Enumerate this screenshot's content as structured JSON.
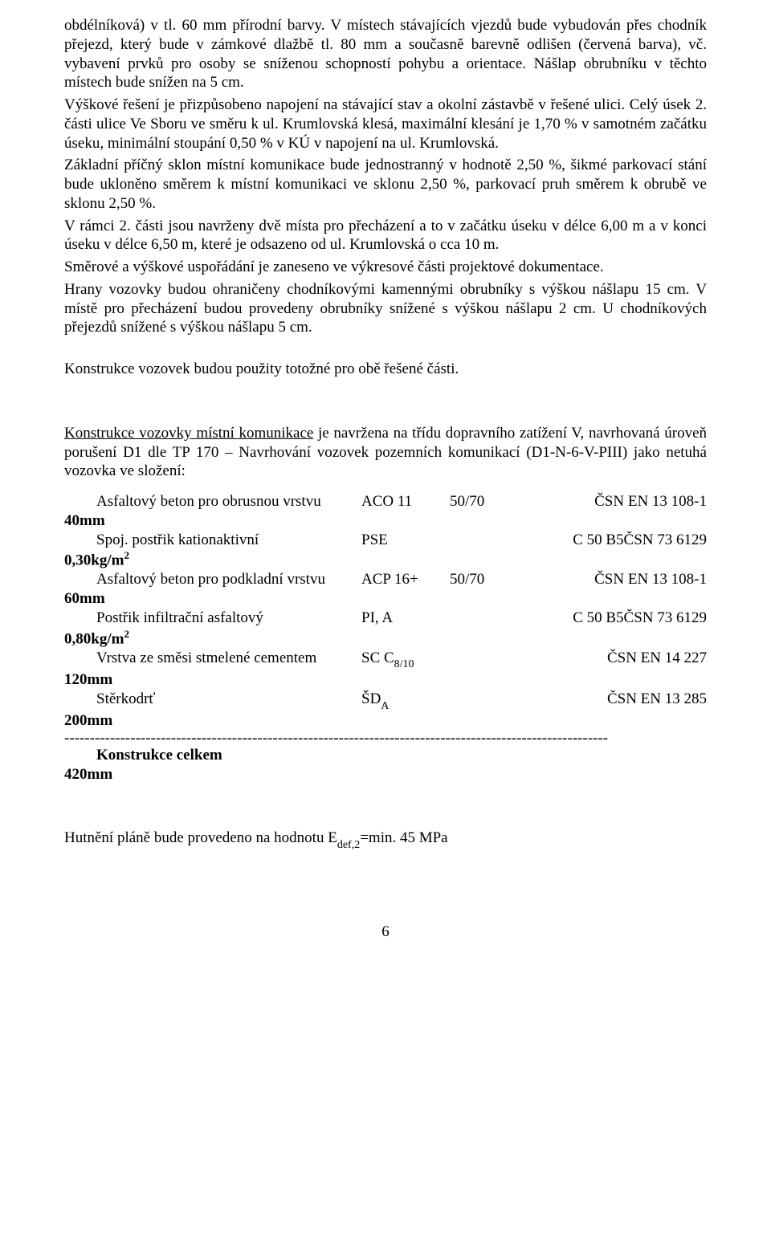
{
  "body": {
    "p1": "obdélníková) v tl. 60 mm přírodní barvy. V místech stávajících vjezdů bude vybudován přes chodník přejezd, který bude v zámkové dlažbě tl. 80 mm a současně barevně odlišen (červená barva), vč. vybavení prvků pro osoby se sníženou schopností pohybu a orientace. Nášlap obrubníku v těchto místech bude snížen na 5 cm.",
    "p2": "Výškové řešení je přizpůsobeno napojení na stávající stav a okolní zástavbě v řešené ulici. Celý úsek 2. části ulice Ve Sboru ve směru k ul. Krumlovská klesá, maximální klesání je 1,70 % v samotném začátku úseku, minimální stoupání 0,50 % v KÚ v napojení na ul. Krumlovská.",
    "p3": "Základní příčný sklon místní komunikace bude jednostranný v hodnotě 2,50 %, šikmé parkovací stání bude ukloněno směrem k místní komunikaci ve sklonu 2,50 %, parkovací pruh směrem k obrubě ve sklonu 2,50 %.",
    "p4": "V rámci 2. části jsou navrženy dvě místa pro přecházení a to v začátku úseku v délce 6,00 m a v konci úseku v délce 6,50 m, které je odsazeno od ul. Krumlovská o cca 10 m.",
    "p5": "Směrové a výškové uspořádání je zaneseno ve výkresové části projektové dokumentace.",
    "p6": "Hrany vozovky budou ohraničeny chodníkovými kamennými obrubníky s výškou nášlapu 15 cm. V místě pro přecházení budou provedeny obrubníky snížené s výškou nášlapu 2 cm. U chodníkových přejezdů snížené s výškou nášlapu 5 cm.",
    "p7": "Konstrukce vozovek budou použity totožné pro obě řešené části.",
    "p8_u": "Konstrukce vozovky místní komunikace",
    "p8_rest": " je navržena na třídu dopravního zatížení V, navrhovaná úroveň porušení D1 dle TP 170 – Navrhování vozovek pozemních komunikací (D1-N-6-V-PIII) jako netuhá vozovka ve složení:",
    "total_label": "Konstrukce celkem",
    "total_thick": "420mm",
    "footer_pre": "Hutnění pláně bude provedeno na hodnotu E",
    "footer_sub": "def,2",
    "footer_post": "=min. 45 MPa",
    "sep": "-----------------------------------------------------------------------------------------------------------"
  },
  "layers": [
    {
      "name": "Asfaltový beton pro obrusnou vrstvu",
      "code": "ACO 11",
      "spec": "50/70",
      "std": "ČSN EN 13 108-1",
      "thick": "40mm"
    },
    {
      "name": "Spoj. postřik kationaktivní",
      "code": "PSE",
      "spec": "",
      "std": "C 50 B5ČSN 73 6129",
      "thick_html": "0,30kg/m<span class=\"sup\">2</span>"
    },
    {
      "name": "Asfaltový beton pro podkladní vrstvu",
      "code": "ACP 16+",
      "spec": "50/70",
      "std": "ČSN EN 13 108-1",
      "thick": "60mm"
    },
    {
      "name": "Postřik infiltrační asfaltový",
      "code": "PI, A",
      "spec": "",
      "std": "C 50 B5ČSN 73 6129",
      "thick_html": "0,80kg/m<span class=\"sup\">2</span>"
    },
    {
      "name": "Vrstva ze směsi stmelené cementem",
      "code_html": "SC C<span class=\"sub\">8/10</span>",
      "spec": "",
      "std": "ČSN EN 14 227",
      "thick": "120mm"
    },
    {
      "name": "Stěrkodrť",
      "code_html": "ŠD<span class=\"sub\">A</span>",
      "spec": "",
      "std": "ČSN EN 13 285",
      "thick": "200mm"
    }
  ],
  "page_number": "6"
}
